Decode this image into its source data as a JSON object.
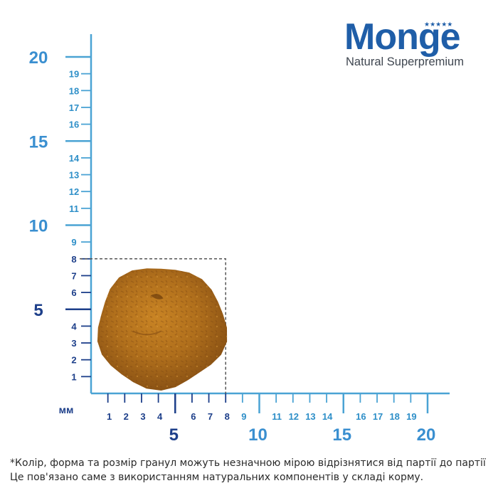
{
  "brand": {
    "name": "Monge",
    "tagline": "Natural Superpremium",
    "color": "#1f5ea8"
  },
  "ruler": {
    "unit_label": "мм",
    "color_axis": "#4aa3d4",
    "color_label_minor": "#2e8fc8",
    "color_label_major": "#3a8fd0",
    "color_label_dark": "#1d3f8a",
    "x_minor_labels": [
      "1",
      "2",
      "3",
      "4",
      "6",
      "7",
      "8",
      "9",
      "11",
      "12",
      "13",
      "14",
      "16",
      "17",
      "18",
      "19"
    ],
    "x_major_labels": [
      "5",
      "10",
      "15",
      "20"
    ],
    "y_minor_labels": [
      "1",
      "2",
      "3",
      "4",
      "6",
      "7",
      "8",
      "9",
      "11",
      "12",
      "13",
      "14",
      "16",
      "17",
      "18",
      "19"
    ],
    "y_major_labels": [
      "5",
      "10",
      "15",
      "20"
    ]
  },
  "kibble": {
    "diameter_mm": 8,
    "height_mm": 8,
    "color": "#b06f1c"
  },
  "disclaimer": {
    "line1": "*Колір, форма та розмір гранул можуть незначною мірою відрізнятися від партії до партії",
    "line2": "Це пов'язано саме з використанням натуральних компонентів у складі корму."
  }
}
